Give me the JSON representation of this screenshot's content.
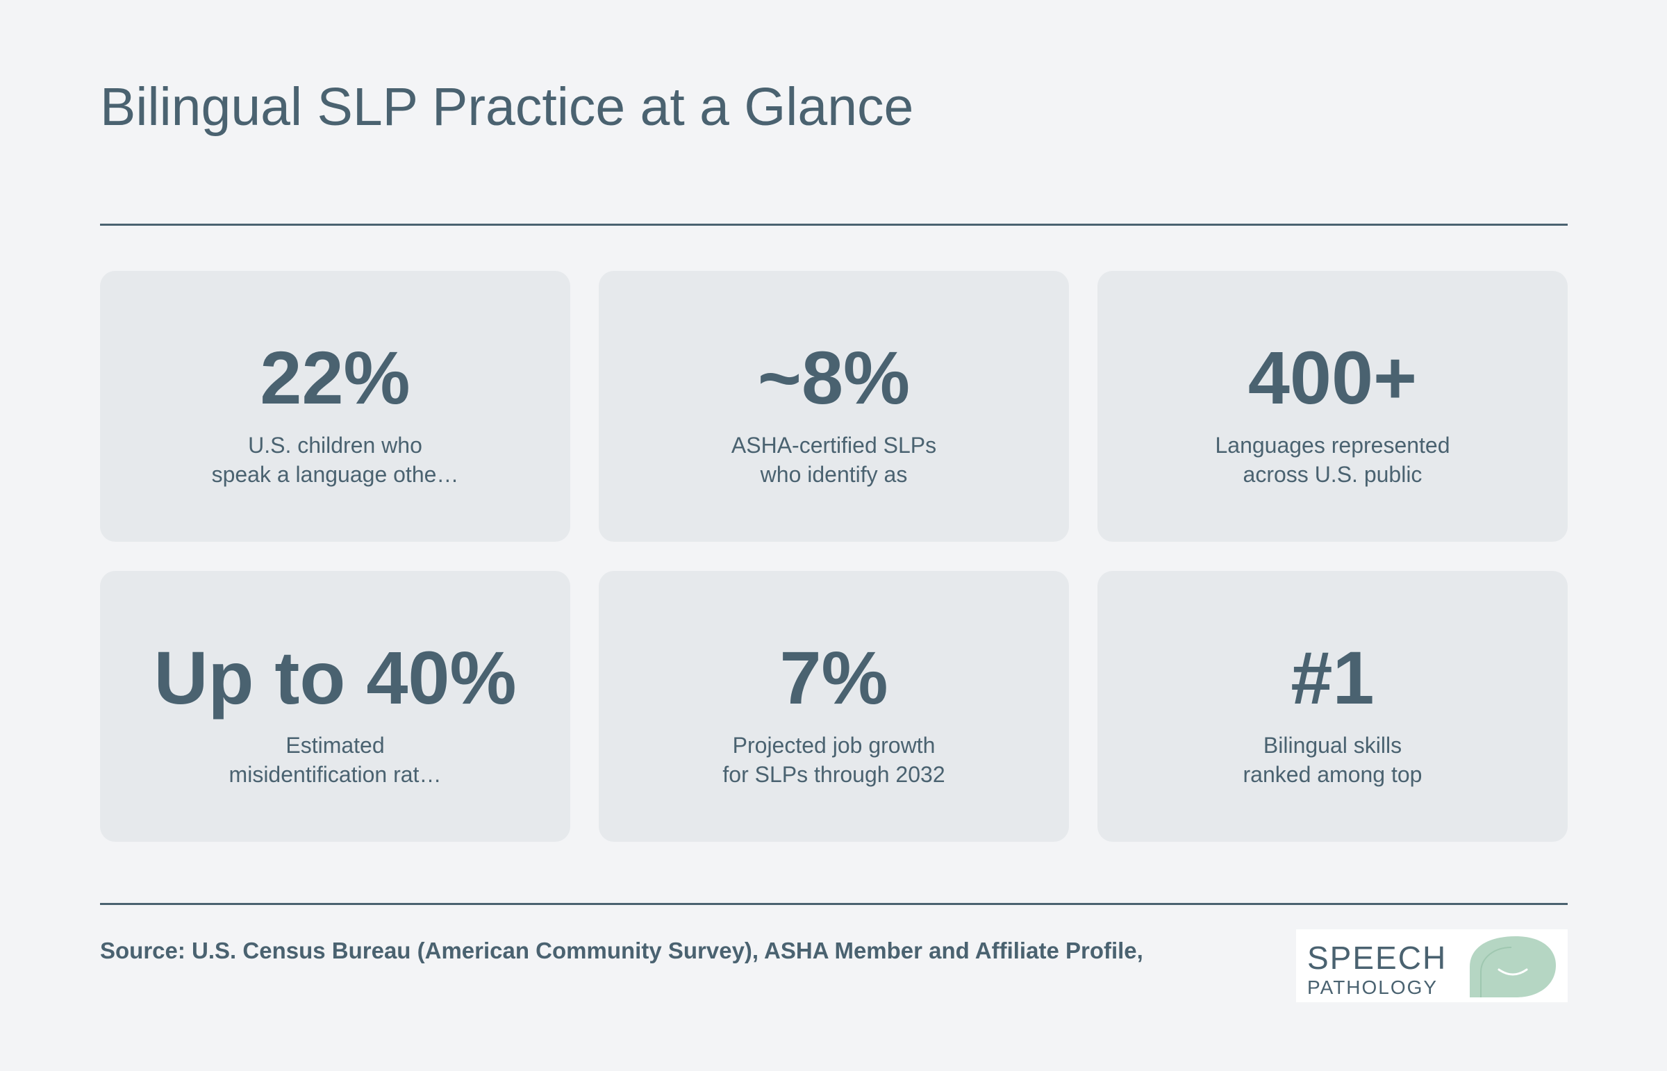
{
  "header": {
    "title": "Bilingual SLP Practice at a Glance"
  },
  "stats": [
    {
      "value": "22%",
      "label_lines": [
        "U.S. children who",
        "speak a language othe…"
      ]
    },
    {
      "value": "~8%",
      "label_lines": [
        "ASHA-certified SLPs",
        "who identify as"
      ]
    },
    {
      "value": "400+",
      "label_lines": [
        "Languages represented",
        "across U.S. public"
      ]
    },
    {
      "value": "Up to 40%",
      "label_lines": [
        "Estimated",
        "misidentification rat…"
      ]
    },
    {
      "value": "7%",
      "label_lines": [
        "Projected job growth",
        "for SLPs through 2032"
      ]
    },
    {
      "value": "#1",
      "label_lines": [
        "Bilingual skills",
        "ranked among top"
      ]
    }
  ],
  "footer": {
    "source": "Source: U.S. Census Bureau (American Community Survey), ASHA Member and Affiliate Profile,"
  },
  "logo": {
    "line1": "SPEECH",
    "line2": "PATHOLOGY",
    "icon": "speech-bubble-smile-icon",
    "bubble_color": "#b5d6c3",
    "text_color": "#4a6270"
  },
  "colors": {
    "background": "#f3f4f6",
    "card": "#e6e9ec",
    "text": "#4a6270"
  }
}
